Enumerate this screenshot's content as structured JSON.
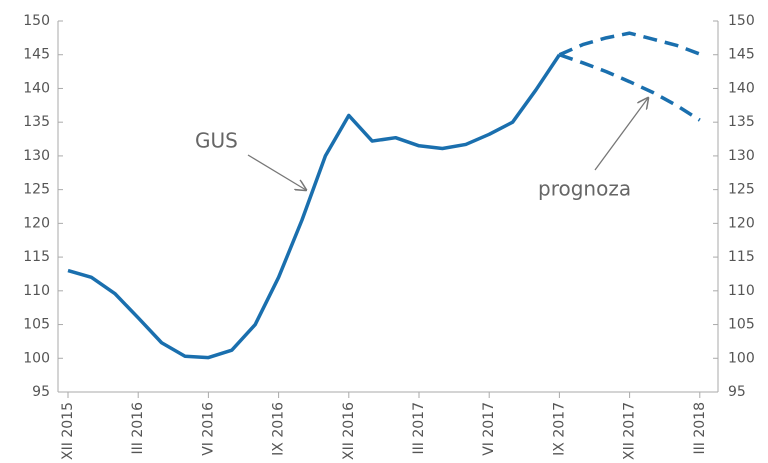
{
  "chart_data": {
    "type": "line",
    "categories": [
      "XII 2015",
      null,
      null,
      "III 2016",
      null,
      null,
      "VI 2016",
      null,
      null,
      "IX 2016",
      null,
      null,
      "XII 2016",
      null,
      null,
      "III 2017",
      null,
      null,
      "VI 2017",
      null,
      null,
      "IX 2017",
      null,
      null,
      "XII 2017",
      null,
      null,
      "III 2018"
    ],
    "series": [
      {
        "name": "GUS",
        "color": "#1a6fae",
        "dashed": false,
        "values": [
          113,
          112,
          109.6,
          106,
          102.3,
          100.3,
          100.1,
          101.2,
          105,
          112,
          120.5,
          130,
          136,
          132.2,
          132.7,
          131.5,
          131.1,
          131.7,
          133.2,
          135,
          139.8,
          145,
          null,
          null,
          null,
          null,
          null,
          null
        ]
      },
      {
        "color": "#1a6fae",
        "dashed": true,
        "values": [
          null,
          null,
          null,
          null,
          null,
          null,
          null,
          null,
          null,
          null,
          null,
          null,
          null,
          null,
          null,
          null,
          null,
          null,
          null,
          null,
          null,
          145,
          146.5,
          147.5,
          148.2,
          147.3,
          146.4,
          145.1
        ]
      },
      {
        "color": "#1a6fae",
        "dashed": true,
        "values": [
          null,
          null,
          null,
          null,
          null,
          null,
          null,
          null,
          null,
          null,
          null,
          null,
          null,
          null,
          null,
          null,
          null,
          null,
          null,
          null,
          null,
          145,
          143.8,
          142.5,
          141,
          139.4,
          137.5,
          135.3
        ]
      }
    ],
    "annotations": [
      "GUS",
      "prognoza"
    ],
    "ylim": [
      95,
      150
    ],
    "yticks": [
      95,
      100,
      105,
      110,
      115,
      120,
      125,
      130,
      135,
      140,
      145,
      150
    ],
    "y2lim": [
      95,
      150
    ],
    "y2ticks": [
      95,
      100,
      105,
      110,
      115,
      120,
      125,
      130,
      135,
      140,
      145,
      150
    ]
  }
}
